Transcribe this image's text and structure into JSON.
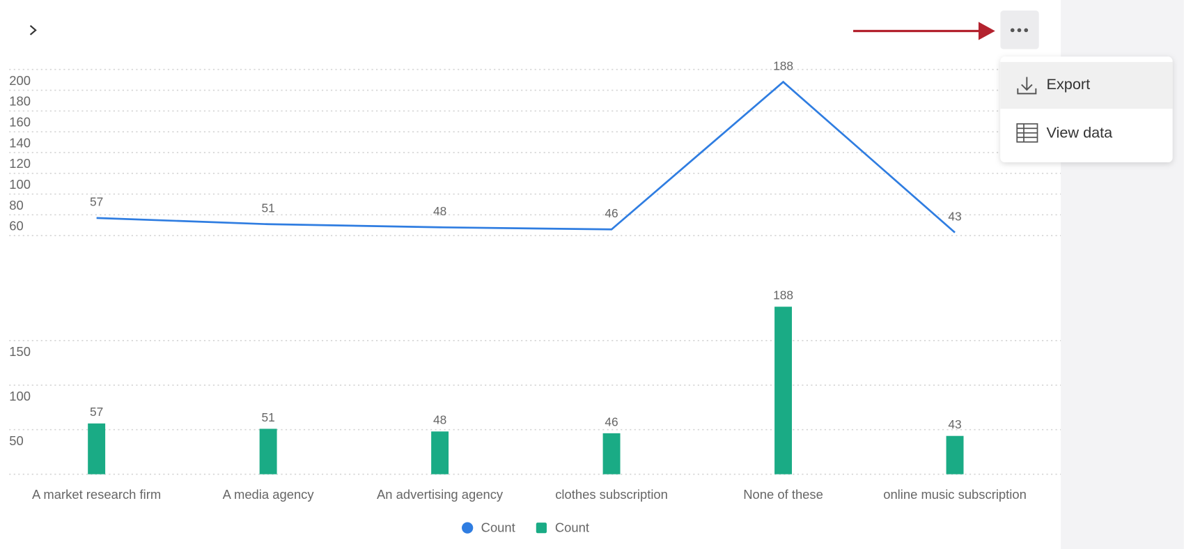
{
  "chart_data": [
    {
      "type": "line",
      "series": [
        {
          "name": "Count",
          "color": "#2f7de1",
          "values": [
            57,
            51,
            48,
            46,
            188,
            43
          ]
        }
      ],
      "ylim": [
        40,
        200
      ],
      "yticks": [
        60,
        80,
        100,
        120,
        140,
        160,
        180,
        200
      ],
      "grid": true
    },
    {
      "type": "bar",
      "categories": [
        "A market research firm",
        "A media agency",
        "An advertising agency",
        "clothes subscription",
        "None of these",
        "online music subscription"
      ],
      "series": [
        {
          "name": "Count",
          "color": "#1aab85",
          "values": [
            57,
            51,
            48,
            46,
            188,
            43
          ]
        }
      ],
      "ylim": [
        0,
        200
      ],
      "yticks": [
        50,
        100,
        150
      ],
      "grid": true
    }
  ],
  "menu": {
    "items": [
      "Export",
      "View data"
    ]
  }
}
